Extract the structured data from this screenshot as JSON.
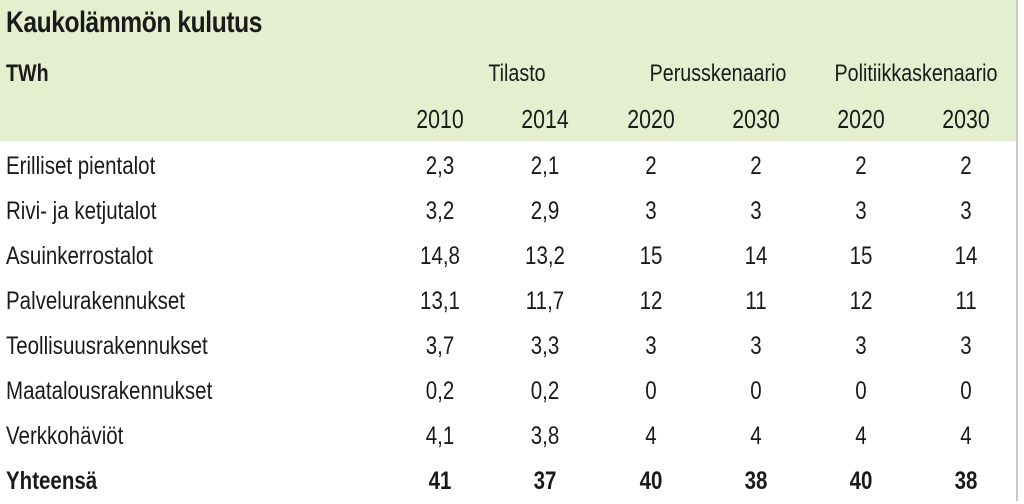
{
  "title": "Kaukolämmön kulutus",
  "unit": "TWh",
  "groups": [
    "Tilasto",
    "Perusskenaario",
    "Politiikkaskenaario"
  ],
  "years": [
    "2010",
    "2014",
    "2020",
    "2030",
    "2020",
    "2030"
  ],
  "rows": [
    {
      "label": "Erilliset pientalot",
      "values": [
        "2,3",
        "2,1",
        "2",
        "2",
        "2",
        "2"
      ]
    },
    {
      "label": "Rivi- ja ketjutalot",
      "values": [
        "3,2",
        "2,9",
        "3",
        "3",
        "3",
        "3"
      ]
    },
    {
      "label": "Asuinkerrostalot",
      "values": [
        "14,8",
        "13,2",
        "15",
        "14",
        "15",
        "14"
      ]
    },
    {
      "label": "Palvelurakennukset",
      "values": [
        "13,1",
        "11,7",
        "12",
        "11",
        "12",
        "11"
      ]
    },
    {
      "label": "Teollisuusrakennukset",
      "values": [
        "3,7",
        "3,3",
        "3",
        "3",
        "3",
        "3"
      ]
    },
    {
      "label": "Maatalousrakennukset",
      "values": [
        "0,2",
        "0,2",
        "0",
        "0",
        "0",
        "0"
      ]
    },
    {
      "label": "Verkkohäviöt",
      "values": [
        "4,1",
        "3,8",
        "4",
        "4",
        "4",
        "4"
      ]
    }
  ],
  "total": {
    "label": "Yhteensä",
    "values": [
      "41",
      "37",
      "40",
      "38",
      "40",
      "38"
    ]
  },
  "colors": {
    "header_bg": "#e4efcf"
  }
}
